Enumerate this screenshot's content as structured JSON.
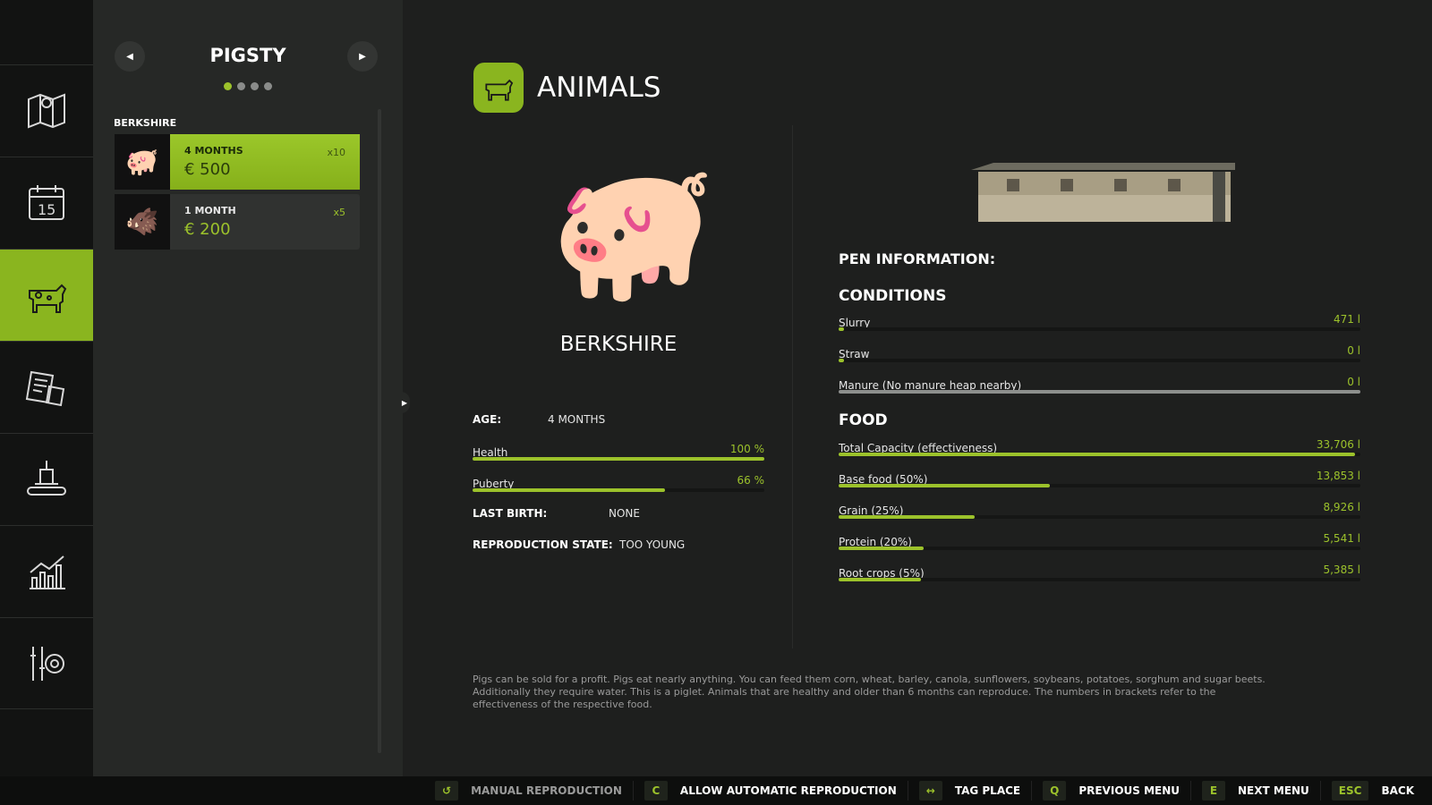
{
  "colors": {
    "accent": "#9cc22b",
    "background": "#1e1f1e",
    "panel": "#262826"
  },
  "sidebar": {
    "items": [
      {
        "icon": "map-icon"
      },
      {
        "icon": "calendar-icon",
        "label": "15"
      },
      {
        "icon": "animals-icon",
        "active": true
      },
      {
        "icon": "contracts-icon"
      },
      {
        "icon": "production-icon"
      },
      {
        "icon": "statistics-icon"
      },
      {
        "icon": "settings-icon"
      }
    ]
  },
  "panel": {
    "title": "PIGSTY",
    "page_dots": 4,
    "active_dot": 0,
    "group": "BERKSHIRE",
    "items": [
      {
        "age": "4 MONTHS",
        "price": "€ 500",
        "count": "x10",
        "selected": true
      },
      {
        "age": "1 MONTH",
        "price": "€ 200",
        "count": "x5"
      }
    ]
  },
  "header": {
    "title": "ANIMALS"
  },
  "animal": {
    "name": "BERKSHIRE",
    "age_label": "AGE:",
    "age": "4 MONTHS",
    "health_label": "Health",
    "health": "100 %",
    "health_fraction": 1.0,
    "puberty_label": "Puberty",
    "puberty": "66 %",
    "puberty_fraction": 0.66,
    "last_birth_label": "LAST BIRTH:",
    "last_birth": "NONE",
    "repro_label": "REPRODUCTION STATE:",
    "repro": "TOO YOUNG"
  },
  "pen": {
    "title": "PEN INFORMATION:",
    "conditions_title": "CONDITIONS",
    "conditions": [
      {
        "label": "Slurry",
        "value": "471 l",
        "fraction": 0.01
      },
      {
        "label": "Straw",
        "value": "0 l",
        "fraction": 0.01
      },
      {
        "label": "Manure (No manure heap nearby)",
        "value": "0 l",
        "fraction": 1.0,
        "disabled": true
      }
    ],
    "food_title": "FOOD",
    "food": [
      {
        "label": "Total Capacity (effectiveness)",
        "value": "33,706 l",
        "fraction": 0.99
      },
      {
        "label": "Base food (50%)",
        "value": "13,853 l",
        "fraction": 0.405
      },
      {
        "label": "Grain (25%)",
        "value": "8,926 l",
        "fraction": 0.26
      },
      {
        "label": "Protein (20%)",
        "value": "5,541 l",
        "fraction": 0.163
      },
      {
        "label": "Root crops (5%)",
        "value": "5,385 l",
        "fraction": 0.158
      }
    ]
  },
  "description": "Pigs can be sold for a profit. Pigs eat nearly anything. You can feed them corn, wheat, barley, canola, sunflowers, soybeans, potatoes, sorghum and sugar beets. Additionally they require water. This is a piglet. Animals that are healthy and older than 6 months can reproduce. The numbers in brackets refer to the effectiveness of the respective food.",
  "bottom": [
    {
      "key": "↺",
      "label": "MANUAL REPRODUCTION",
      "disabled": true
    },
    {
      "key": "C",
      "label": "ALLOW AUTOMATIC REPRODUCTION"
    },
    {
      "key": "↔",
      "label": "TAG PLACE"
    },
    {
      "key": "Q",
      "label": "PREVIOUS MENU"
    },
    {
      "key": "E",
      "label": "NEXT MENU"
    },
    {
      "key": "ESC",
      "label": "BACK"
    }
  ]
}
